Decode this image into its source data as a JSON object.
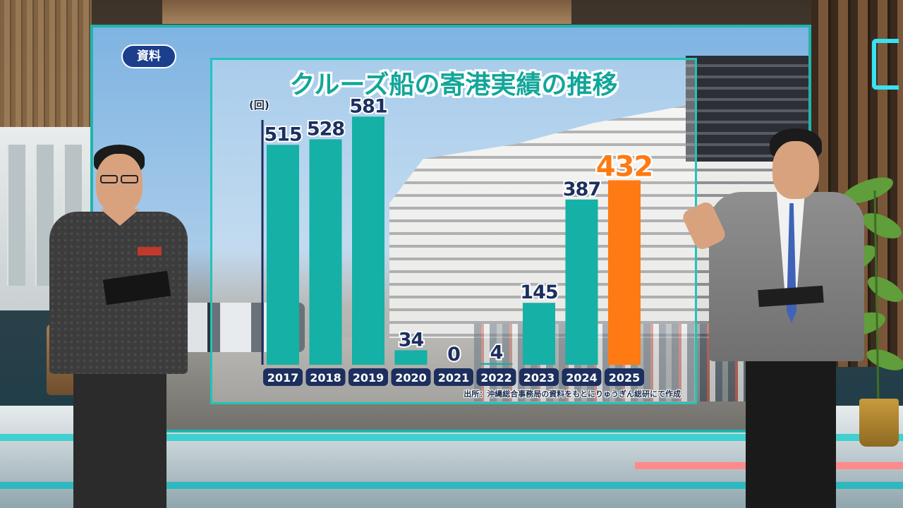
{
  "badge": {
    "label": "資料"
  },
  "chart_data": {
    "type": "bar",
    "title": "クルーズ船の寄港実績の推移",
    "ylabel": "(回)",
    "categories": [
      "2017",
      "2018",
      "2019",
      "2020",
      "2021",
      "2022",
      "2023",
      "2024",
      "2025"
    ],
    "values": [
      515,
      528,
      581,
      34,
      0,
      4,
      145,
      387,
      432
    ],
    "value_labels": [
      "515",
      "528",
      "581",
      "34",
      "0",
      "4",
      "145",
      "387",
      "432"
    ],
    "ylim": [
      0,
      600
    ],
    "highlight_index": 8,
    "colors": {
      "bar": "#15b0a6",
      "highlight": "#ff7a12",
      "category_bg": "#1c2f5e"
    },
    "grid": false,
    "source": "出所：沖縄総合事務局の資料をもとにりゅうぎん総研にて作成"
  }
}
